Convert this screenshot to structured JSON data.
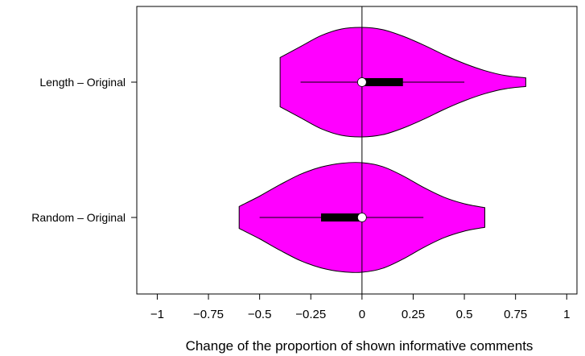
{
  "chart_data": {
    "type": "violin",
    "orientation": "horizontal",
    "xlabel": "Change of the proportion of shown informative comments",
    "xlim": [
      -1.1,
      1.05
    ],
    "xticks": [
      -1,
      -0.75,
      -0.5,
      -0.25,
      0,
      0.25,
      0.5,
      0.75,
      1
    ],
    "xtick_labels": [
      "−1",
      "−0.75",
      "−0.5",
      "−0.25",
      "0",
      "0.25",
      "0.5",
      "0.75",
      "1"
    ],
    "reference_line_x": 0,
    "categories": [
      "Length – Original",
      "Random – Original"
    ],
    "series": [
      {
        "category": "Length – Original",
        "min": -0.4,
        "max": 0.8,
        "q1": 0.0,
        "median": 0.0,
        "q3": 0.2,
        "whisker_low": -0.3,
        "whisker_high": 0.5,
        "density": [
          [
            -0.4,
            0.45
          ],
          [
            -0.3,
            0.65
          ],
          [
            -0.2,
            0.85
          ],
          [
            -0.1,
            0.97
          ],
          [
            0.0,
            1.0
          ],
          [
            0.1,
            0.96
          ],
          [
            0.2,
            0.84
          ],
          [
            0.3,
            0.68
          ],
          [
            0.4,
            0.5
          ],
          [
            0.5,
            0.34
          ],
          [
            0.6,
            0.21
          ],
          [
            0.7,
            0.12
          ],
          [
            0.8,
            0.08
          ]
        ]
      },
      {
        "category": "Random – Original",
        "min": -0.6,
        "max": 0.6,
        "q1": -0.2,
        "median": 0.0,
        "q3": 0.0,
        "whisker_low": -0.5,
        "whisker_high": 0.3,
        "density": [
          [
            -0.6,
            0.2
          ],
          [
            -0.5,
            0.39
          ],
          [
            -0.4,
            0.6
          ],
          [
            -0.3,
            0.79
          ],
          [
            -0.2,
            0.92
          ],
          [
            -0.1,
            0.99
          ],
          [
            0.0,
            1.0
          ],
          [
            0.1,
            0.93
          ],
          [
            0.2,
            0.76
          ],
          [
            0.3,
            0.55
          ],
          [
            0.4,
            0.37
          ],
          [
            0.5,
            0.25
          ],
          [
            0.6,
            0.18
          ]
        ]
      }
    ],
    "fill_color": "#ff00ff",
    "stroke_color": "#000000",
    "median_marker_color": "#ffffff",
    "grid": false,
    "legend": "none"
  }
}
